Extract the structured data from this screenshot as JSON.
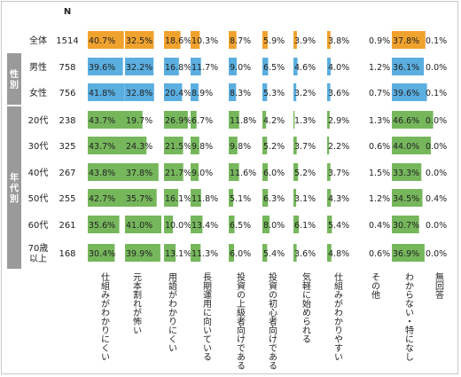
{
  "chart_data": {
    "type": "table",
    "n_header": "N",
    "groups": [
      {
        "label": "性別",
        "first_row": 1,
        "last_row": 2
      },
      {
        "label": "年代別",
        "first_row": 3,
        "last_row": 8
      }
    ],
    "rows": [
      {
        "label": "全体",
        "n": "1514",
        "values": [
          40.7,
          32.5,
          18.6,
          10.3,
          8.7,
          5.9,
          3.9,
          3.8,
          0.9,
          37.8,
          0.1
        ]
      },
      {
        "label": "男性",
        "n": "758",
        "values": [
          39.6,
          32.2,
          16.8,
          11.7,
          9.0,
          6.5,
          4.6,
          4.0,
          1.2,
          36.1,
          0.0
        ]
      },
      {
        "label": "女性",
        "n": "756",
        "values": [
          41.8,
          32.8,
          20.4,
          8.9,
          8.3,
          5.3,
          3.2,
          3.6,
          0.7,
          39.6,
          0.1
        ]
      },
      {
        "label": "20代",
        "n": "238",
        "values": [
          43.7,
          19.7,
          26.9,
          6.7,
          11.8,
          4.2,
          1.3,
          2.9,
          1.3,
          46.6,
          0.0
        ]
      },
      {
        "label": "30代",
        "n": "325",
        "values": [
          43.7,
          24.3,
          21.5,
          9.8,
          9.8,
          5.2,
          3.7,
          2.2,
          0.6,
          44.0,
          0.0
        ]
      },
      {
        "label": "40代",
        "n": "267",
        "values": [
          43.8,
          37.8,
          21.7,
          9.0,
          11.6,
          6.0,
          5.2,
          3.7,
          1.5,
          33.3,
          0.0
        ]
      },
      {
        "label": "50代",
        "n": "255",
        "values": [
          42.7,
          35.7,
          16.1,
          11.8,
          5.1,
          6.3,
          3.1,
          4.3,
          1.2,
          34.5,
          0.4
        ]
      },
      {
        "label": "60代",
        "n": "261",
        "values": [
          35.6,
          41.0,
          10.0,
          13.4,
          6.5,
          8.0,
          6.1,
          5.4,
          0.4,
          30.7,
          0.0
        ]
      },
      {
        "label": "70歳\n以上",
        "n": "168",
        "values": [
          30.4,
          39.9,
          13.1,
          11.3,
          6.0,
          5.4,
          3.6,
          4.8,
          0.6,
          36.9,
          0.0
        ]
      }
    ],
    "columns": [
      "仕組みがわかりにくい",
      "元本割れが怖い",
      "用語がわかりにくい",
      "長期運用に向いている",
      "投資の上級者向けである",
      "投資の初心者向けである",
      "気軽に始められる",
      "仕組みがわかりやすい",
      "その他",
      "わからない・特になし",
      "無回答"
    ],
    "bar_columns": [
      0,
      1,
      2,
      3,
      4,
      5,
      6,
      7,
      9
    ],
    "row_colors": [
      "#f0a22e",
      "#5aaee0",
      "#5aaee0",
      "#76b75c",
      "#76b75c",
      "#76b75c",
      "#76b75c",
      "#76b75c",
      "#76b75c"
    ],
    "value_color": "#222222"
  }
}
